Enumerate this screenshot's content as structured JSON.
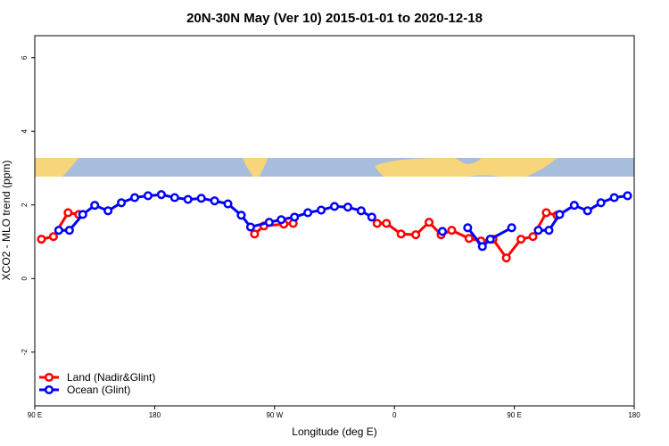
{
  "chart_data": {
    "type": "line",
    "title": "20N-30N May (Ver 10)   2015-01-01 to 2020-12-18",
    "x_label": "Longitude (deg E)",
    "y_label": "XCO2 - MLO trend (ppm)",
    "xlim": [
      90,
      540
    ],
    "xticks": [
      {
        "value": 90,
        "label": "90 E"
      },
      180,
      {
        "value": 270,
        "label": "90 W"
      },
      {
        "value": 360,
        "label": "0"
      },
      {
        "value": 450,
        "label": "90 E"
      },
      {
        "value": 540,
        "label": "180"
      }
    ],
    "ylim": [
      -3.46,
      6.6
    ],
    "yticks": [
      -2,
      0,
      2,
      4,
      6
    ],
    "legend": "bottom-left",
    "series": [
      {
        "name": "Land (Nadir&Glint)",
        "color": "#ff0000",
        "x": [
          95,
          104,
          115,
          123,
          180,
          255,
          262,
          277,
          284,
          320,
          347,
          354,
          365,
          376,
          386,
          395,
          403,
          416,
          425,
          434,
          444,
          455,
          464,
          474,
          482
        ],
        "values": [
          1.07,
          1.14,
          1.79,
          1.74,
          null,
          1.21,
          1.43,
          1.48,
          1.5,
          null,
          1.5,
          1.5,
          1.21,
          1.19,
          1.53,
          1.19,
          1.31,
          1.09,
          1.02,
          1.07,
          0.56,
          1.07,
          1.14,
          1.79,
          1.72
        ]
      },
      {
        "name": "Ocean (Glint)",
        "color": "#0000ff",
        "x": [
          108,
          116,
          126,
          135,
          145,
          155,
          165,
          175,
          185,
          195,
          205,
          215,
          225,
          235,
          245,
          252,
          266,
          275,
          285,
          295,
          305,
          315,
          325,
          335,
          343,
          380,
          396,
          405,
          415,
          426,
          432,
          448,
          460,
          468,
          476,
          484,
          495,
          505,
          515,
          525,
          535
        ],
        "values": [
          1.31,
          1.31,
          1.74,
          1.99,
          1.84,
          2.06,
          2.2,
          2.25,
          2.28,
          2.2,
          2.15,
          2.18,
          2.11,
          2.03,
          1.72,
          1.4,
          1.53,
          1.6,
          1.67,
          1.79,
          1.86,
          1.96,
          1.94,
          1.84,
          1.67,
          null,
          1.28,
          null,
          1.38,
          0.87,
          1.07,
          1.38,
          null,
          1.31,
          1.31,
          1.74,
          1.99,
          1.84,
          2.06,
          2.2,
          2.25
        ]
      }
    ]
  }
}
